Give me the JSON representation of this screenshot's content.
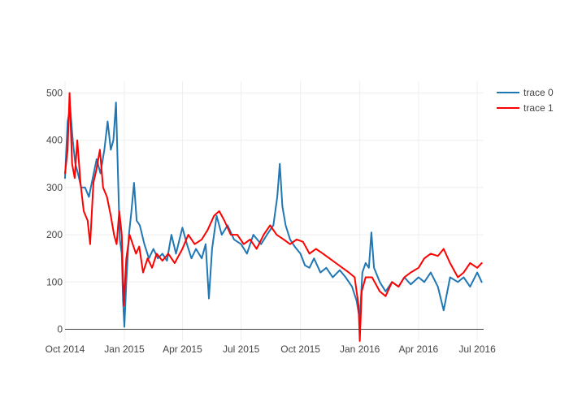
{
  "chart_data": {
    "type": "line",
    "title": "",
    "xlabel": "",
    "ylabel": "",
    "xlim": [
      "2014-10-01",
      "2016-07-11"
    ],
    "ylim": [
      -25,
      525
    ],
    "grid": true,
    "legend_position": "top-right",
    "x_ticks": [
      "2014-10-01",
      "2015-01-01",
      "2015-04-01",
      "2015-07-01",
      "2015-10-01",
      "2016-01-01",
      "2016-04-01",
      "2016-07-01"
    ],
    "x_tick_labels": [
      "Oct 2014",
      "Jan 2015",
      "Apr 2015",
      "Jul 2015",
      "Oct 2015",
      "Jan 2016",
      "Apr 2016",
      "Jul 2016"
    ],
    "y_ticks": [
      0,
      100,
      200,
      300,
      400,
      500
    ],
    "y_tick_labels": [
      "0",
      "100",
      "200",
      "300",
      "400",
      "500"
    ],
    "series": [
      {
        "name": "trace 0",
        "color": "#1f77b4",
        "points": [
          [
            "2014-10-01",
            320
          ],
          [
            "2014-10-05",
            440
          ],
          [
            "2014-10-09",
            470
          ],
          [
            "2014-10-13",
            400
          ],
          [
            "2014-10-17",
            350
          ],
          [
            "2014-10-21",
            330
          ],
          [
            "2014-10-26",
            300
          ],
          [
            "2014-11-01",
            300
          ],
          [
            "2014-11-07",
            280
          ],
          [
            "2014-11-13",
            320
          ],
          [
            "2014-11-19",
            360
          ],
          [
            "2014-11-25",
            330
          ],
          [
            "2014-12-01",
            380
          ],
          [
            "2014-12-06",
            440
          ],
          [
            "2014-12-11",
            380
          ],
          [
            "2014-12-15",
            400
          ],
          [
            "2014-12-19",
            480
          ],
          [
            "2014-12-22",
            330
          ],
          [
            "2014-12-25",
            190
          ],
          [
            "2014-12-28",
            160
          ],
          [
            "2014-12-30",
            60
          ],
          [
            "2015-01-01",
            5
          ],
          [
            "2015-01-04",
            100
          ],
          [
            "2015-01-08",
            200
          ],
          [
            "2015-01-12",
            250
          ],
          [
            "2015-01-16",
            310
          ],
          [
            "2015-01-20",
            230
          ],
          [
            "2015-01-25",
            220
          ],
          [
            "2015-02-01",
            180
          ],
          [
            "2015-02-08",
            150
          ],
          [
            "2015-02-15",
            170
          ],
          [
            "2015-02-22",
            150
          ],
          [
            "2015-03-01",
            160
          ],
          [
            "2015-03-08",
            145
          ],
          [
            "2015-03-15",
            200
          ],
          [
            "2015-03-22",
            160
          ],
          [
            "2015-04-01",
            215
          ],
          [
            "2015-04-08",
            180
          ],
          [
            "2015-04-15",
            150
          ],
          [
            "2015-04-22",
            170
          ],
          [
            "2015-05-01",
            150
          ],
          [
            "2015-05-07",
            180
          ],
          [
            "2015-05-12",
            65
          ],
          [
            "2015-05-17",
            170
          ],
          [
            "2015-05-24",
            240
          ],
          [
            "2015-06-01",
            200
          ],
          [
            "2015-06-10",
            220
          ],
          [
            "2015-06-20",
            190
          ],
          [
            "2015-07-01",
            180
          ],
          [
            "2015-07-10",
            160
          ],
          [
            "2015-07-20",
            200
          ],
          [
            "2015-08-01",
            180
          ],
          [
            "2015-08-10",
            200
          ],
          [
            "2015-08-20",
            220
          ],
          [
            "2015-08-26",
            280
          ],
          [
            "2015-08-30",
            350
          ],
          [
            "2015-09-03",
            260
          ],
          [
            "2015-09-08",
            220
          ],
          [
            "2015-09-15",
            190
          ],
          [
            "2015-09-22",
            175
          ],
          [
            "2015-10-01",
            160
          ],
          [
            "2015-10-08",
            135
          ],
          [
            "2015-10-15",
            130
          ],
          [
            "2015-10-22",
            150
          ],
          [
            "2015-11-01",
            120
          ],
          [
            "2015-11-10",
            130
          ],
          [
            "2015-11-20",
            110
          ],
          [
            "2015-12-01",
            125
          ],
          [
            "2015-12-10",
            110
          ],
          [
            "2015-12-20",
            90
          ],
          [
            "2015-12-27",
            60
          ],
          [
            "2016-01-01",
            20
          ],
          [
            "2016-01-05",
            120
          ],
          [
            "2016-01-10",
            140
          ],
          [
            "2016-01-15",
            130
          ],
          [
            "2016-01-19",
            205
          ],
          [
            "2016-01-23",
            130
          ],
          [
            "2016-02-01",
            100
          ],
          [
            "2016-02-10",
            80
          ],
          [
            "2016-02-20",
            100
          ],
          [
            "2016-03-01",
            90
          ],
          [
            "2016-03-10",
            110
          ],
          [
            "2016-03-20",
            95
          ],
          [
            "2016-04-01",
            110
          ],
          [
            "2016-04-10",
            100
          ],
          [
            "2016-04-20",
            120
          ],
          [
            "2016-05-01",
            90
          ],
          [
            "2016-05-10",
            40
          ],
          [
            "2016-05-20",
            110
          ],
          [
            "2016-06-01",
            100
          ],
          [
            "2016-06-10",
            110
          ],
          [
            "2016-06-20",
            90
          ],
          [
            "2016-07-01",
            120
          ],
          [
            "2016-07-08",
            100
          ]
        ]
      },
      {
        "name": "trace 1",
        "color": "#ff0000",
        "points": [
          [
            "2014-10-01",
            330
          ],
          [
            "2014-10-05",
            380
          ],
          [
            "2014-10-08",
            500
          ],
          [
            "2014-10-12",
            350
          ],
          [
            "2014-10-16",
            320
          ],
          [
            "2014-10-20",
            400
          ],
          [
            "2014-10-25",
            310
          ],
          [
            "2014-10-30",
            250
          ],
          [
            "2014-11-05",
            230
          ],
          [
            "2014-11-09",
            180
          ],
          [
            "2014-11-14",
            310
          ],
          [
            "2014-11-19",
            340
          ],
          [
            "2014-11-24",
            380
          ],
          [
            "2014-11-29",
            300
          ],
          [
            "2014-12-05",
            280
          ],
          [
            "2014-12-11",
            240
          ],
          [
            "2014-12-16",
            200
          ],
          [
            "2014-12-20",
            180
          ],
          [
            "2014-12-24",
            250
          ],
          [
            "2014-12-28",
            200
          ],
          [
            "2014-12-31",
            50
          ],
          [
            "2015-01-04",
            150
          ],
          [
            "2015-01-09",
            200
          ],
          [
            "2015-01-14",
            180
          ],
          [
            "2015-01-19",
            160
          ],
          [
            "2015-01-24",
            175
          ],
          [
            "2015-01-30",
            120
          ],
          [
            "2015-02-06",
            150
          ],
          [
            "2015-02-13",
            130
          ],
          [
            "2015-02-20",
            160
          ],
          [
            "2015-03-01",
            145
          ],
          [
            "2015-03-10",
            160
          ],
          [
            "2015-03-20",
            140
          ],
          [
            "2015-04-01",
            170
          ],
          [
            "2015-04-10",
            200
          ],
          [
            "2015-04-20",
            180
          ],
          [
            "2015-05-01",
            190
          ],
          [
            "2015-05-10",
            210
          ],
          [
            "2015-05-20",
            240
          ],
          [
            "2015-05-28",
            250
          ],
          [
            "2015-06-05",
            230
          ],
          [
            "2015-06-15",
            200
          ],
          [
            "2015-06-25",
            200
          ],
          [
            "2015-07-05",
            180
          ],
          [
            "2015-07-15",
            190
          ],
          [
            "2015-07-25",
            170
          ],
          [
            "2015-08-05",
            200
          ],
          [
            "2015-08-15",
            220
          ],
          [
            "2015-08-25",
            200
          ],
          [
            "2015-09-05",
            190
          ],
          [
            "2015-09-15",
            180
          ],
          [
            "2015-09-25",
            190
          ],
          [
            "2015-10-05",
            185
          ],
          [
            "2015-10-15",
            160
          ],
          [
            "2015-10-25",
            170
          ],
          [
            "2015-11-05",
            160
          ],
          [
            "2015-11-15",
            150
          ],
          [
            "2015-11-25",
            140
          ],
          [
            "2015-12-05",
            130
          ],
          [
            "2015-12-15",
            120
          ],
          [
            "2015-12-24",
            110
          ],
          [
            "2015-12-30",
            50
          ],
          [
            "2016-01-01",
            -25
          ],
          [
            "2016-01-04",
            80
          ],
          [
            "2016-01-10",
            110
          ],
          [
            "2016-01-20",
            110
          ],
          [
            "2016-02-01",
            80
          ],
          [
            "2016-02-10",
            70
          ],
          [
            "2016-02-20",
            100
          ],
          [
            "2016-03-01",
            90
          ],
          [
            "2016-03-10",
            110
          ],
          [
            "2016-03-20",
            120
          ],
          [
            "2016-04-01",
            130
          ],
          [
            "2016-04-10",
            150
          ],
          [
            "2016-04-20",
            160
          ],
          [
            "2016-05-01",
            155
          ],
          [
            "2016-05-10",
            170
          ],
          [
            "2016-05-20",
            140
          ],
          [
            "2016-06-01",
            110
          ],
          [
            "2016-06-10",
            120
          ],
          [
            "2016-06-20",
            140
          ],
          [
            "2016-07-01",
            130
          ],
          [
            "2016-07-08",
            140
          ]
        ]
      }
    ]
  }
}
